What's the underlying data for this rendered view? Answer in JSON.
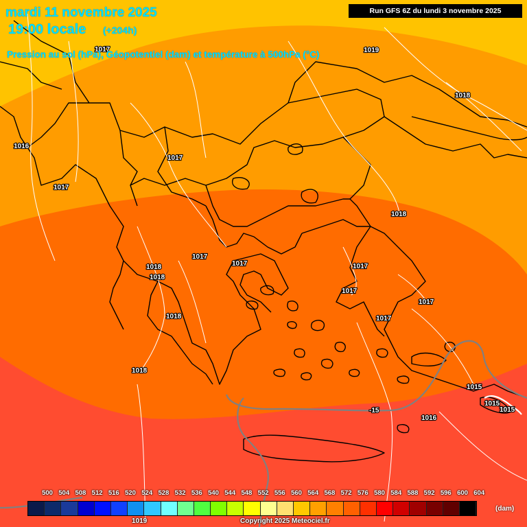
{
  "header": {
    "date": "mardi 11 novembre 2025",
    "time": "19:00 locale",
    "offset": "(+204h)",
    "subtitle": "Pression au sol (hPa), Géopotentiel (dam) et température à 500hPa (°C)",
    "run": "Run GFS 6Z du lundi 3 novembre 2025"
  },
  "colors": {
    "band_576": "#ffc300",
    "band_572": "#ff9c00",
    "band_568": "#ff6c00",
    "band_564": "#ff4c30",
    "coast": "#000000",
    "isobar": "#ffffff",
    "isotherm": "#808080",
    "title": "#00e0ff"
  },
  "pressure_labels": [
    "1016",
    "1017",
    "1017",
    "1017",
    "1018",
    "1017",
    "1017",
    "1018",
    "1018",
    "1018",
    "1018",
    "1017",
    "1017",
    "1017",
    "1017",
    "1018",
    "1015",
    "1015",
    "1015",
    "1016",
    "1019"
  ],
  "isotherm_label": "-15",
  "legend": {
    "ticks": [
      "500",
      "504",
      "508",
      "512",
      "516",
      "520",
      "524",
      "528",
      "532",
      "536",
      "540",
      "544",
      "548",
      "552",
      "556",
      "560",
      "564",
      "568",
      "572",
      "576",
      "580",
      "584",
      "588",
      "592",
      "596",
      "600",
      "604"
    ],
    "colors": [
      "#0a1a4a",
      "#0d2a6a",
      "#1a3a9a",
      "#0000d0",
      "#0010ff",
      "#1040ff",
      "#1090f0",
      "#30c8ff",
      "#70ffff",
      "#70ff90",
      "#50ff40",
      "#80ff00",
      "#c8ff00",
      "#ffff00",
      "#ffff90",
      "#ffe070",
      "#ffc800",
      "#ffa000",
      "#ff8000",
      "#ff6000",
      "#ff3000",
      "#ff0000",
      "#d00000",
      "#a00000",
      "#780000",
      "#600000",
      "#000000"
    ],
    "unit": "(dam)"
  },
  "footer": {
    "copyright": "Copyright 2025 Meteociel.fr",
    "low_label": "1019"
  }
}
